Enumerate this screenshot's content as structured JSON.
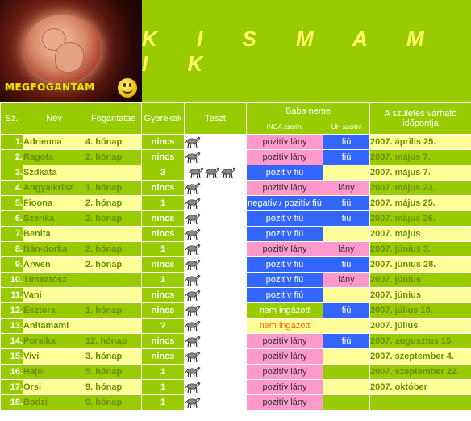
{
  "header": {
    "title": "K I S M A M I K",
    "logo_text": "MEGFOGANTAM"
  },
  "table": {
    "columns": {
      "num": "Sz.",
      "name": "Név",
      "conception": "Fogantatás",
      "children": "Gyerekek",
      "test": "Teszt",
      "baby_sex": "Baba neme",
      "inga": "INGA szerint",
      "uh": "UH szerint",
      "due": "A születés várható időpontja"
    },
    "rows": [
      {
        "num": "1.",
        "name": "Adrienna",
        "conception": "4. hónap",
        "children": "nincs",
        "zebras": 1,
        "inga": "pozitív lány",
        "inga_color": "pink",
        "uh": "fiú",
        "uh_color": "blue",
        "due": "2007. április 25."
      },
      {
        "num": "2.",
        "name": "Ragota",
        "conception": "2. hónap",
        "children": "nincs",
        "zebras": 1,
        "inga": "pozitív lány",
        "inga_color": "pink",
        "uh": "fiú",
        "uh_color": "blue",
        "due": "2007. május 7."
      },
      {
        "num": "3.",
        "name": "Szdkata",
        "conception": "",
        "children": "3",
        "zebras": 3,
        "inga": "pozitív fiú",
        "inga_color": "blue",
        "uh": "",
        "uh_color": "",
        "due": "2007. május 7."
      },
      {
        "num": "4.",
        "name": "Angyalkrisz",
        "conception": "1. hónap",
        "children": "nincs",
        "zebras": 1,
        "inga": "pozitív lány",
        "inga_color": "pink",
        "uh": "lány",
        "uh_color": "pink",
        "due": "2007. május 23."
      },
      {
        "num": "5.",
        "name": "Fioona",
        "conception": "2. hónap",
        "children": "1",
        "zebras": 1,
        "inga": "negatív / pozitív fiú",
        "inga_color": "blue",
        "uh": "fiú",
        "uh_color": "blue",
        "due": "2007. május 25."
      },
      {
        "num": "6.",
        "name": "Szerika",
        "conception": "2. hónap",
        "children": "nincs",
        "zebras": 1,
        "inga": "pozitív fiú",
        "inga_color": "blue",
        "uh": "fiú",
        "uh_color": "blue",
        "due": "2007. május 26."
      },
      {
        "num": "7.",
        "name": "Benita",
        "conception": "",
        "children": "nincs",
        "zebras": 1,
        "inga": "pozitív fiú",
        "inga_color": "blue",
        "uh": "",
        "uh_color": "",
        "due": "2007. május"
      },
      {
        "num": "8.",
        "name": "Nán-dorka",
        "conception": "2. hónap",
        "children": "1",
        "zebras": 1,
        "inga": "pozitív lány",
        "inga_color": "pink",
        "uh": "lány",
        "uh_color": "pink",
        "due": "2007. június 3."
      },
      {
        "num": "9.",
        "name": "Arwen",
        "conception": "2. hónap",
        "children": "nincs",
        "zebras": 1,
        "inga": "pozitív fiú",
        "inga_color": "blue",
        "uh": "fiú",
        "uh_color": "blue",
        "due": "2007. június 28."
      },
      {
        "num": "10.",
        "name": "Tímeatósz",
        "conception": "",
        "children": "1",
        "zebras": 1,
        "inga": "pozitív fiú",
        "inga_color": "blue",
        "uh": "lány",
        "uh_color": "pink",
        "due": "2007. június"
      },
      {
        "num": "11.",
        "name": "Vani",
        "conception": "",
        "children": "nincs",
        "zebras": 1,
        "inga": "pozitív fiú",
        "inga_color": "blue",
        "uh": "",
        "uh_color": "",
        "due": "2007. június"
      },
      {
        "num": "12.",
        "name": "Esztora",
        "conception": "1. hónap",
        "children": "nincs",
        "zebras": 1,
        "inga": "nem ingázott",
        "inga_color": "none",
        "uh": "fiú",
        "uh_color": "blue",
        "due": "2007. július 10."
      },
      {
        "num": "13.",
        "name": "Anitamami",
        "conception": "",
        "children": "?",
        "zebras": 1,
        "inga": "nem ingázott",
        "inga_color": "none",
        "uh": "",
        "uh_color": "",
        "due": "2007. július"
      },
      {
        "num": "14.",
        "name": "Porsika",
        "conception": "12. hónap",
        "children": "nincs",
        "zebras": 1,
        "inga": "pozitív lány",
        "inga_color": "pink",
        "uh": "fiú",
        "uh_color": "blue",
        "due": "2007. augusztus 15."
      },
      {
        "num": "15.",
        "name": "Vivi",
        "conception": "3. hónap",
        "children": "nincs",
        "zebras": 1,
        "inga": "pozitív lány",
        "inga_color": "pink",
        "uh": "",
        "uh_color": "",
        "due": "2007. szeptember 4."
      },
      {
        "num": "16.",
        "name": "Hajni",
        "conception": "5. hónap",
        "children": "1",
        "zebras": 1,
        "inga": "pozitív lány",
        "inga_color": "pink",
        "uh": "",
        "uh_color": "",
        "due": "2007. szeptember 22."
      },
      {
        "num": "17.",
        "name": "Orsi",
        "conception": "9. hónap",
        "children": "1",
        "zebras": 1,
        "inga": "pozitív lány",
        "inga_color": "pink",
        "uh": "",
        "uh_color": "",
        "due": "2007. október"
      },
      {
        "num": "18.",
        "name": "Bodzi",
        "conception": "9. hónap",
        "children": "1",
        "zebras": 1,
        "inga": "pozitív lány",
        "inga_color": "pink",
        "uh": "",
        "uh_color": "",
        "due": ""
      }
    ]
  }
}
